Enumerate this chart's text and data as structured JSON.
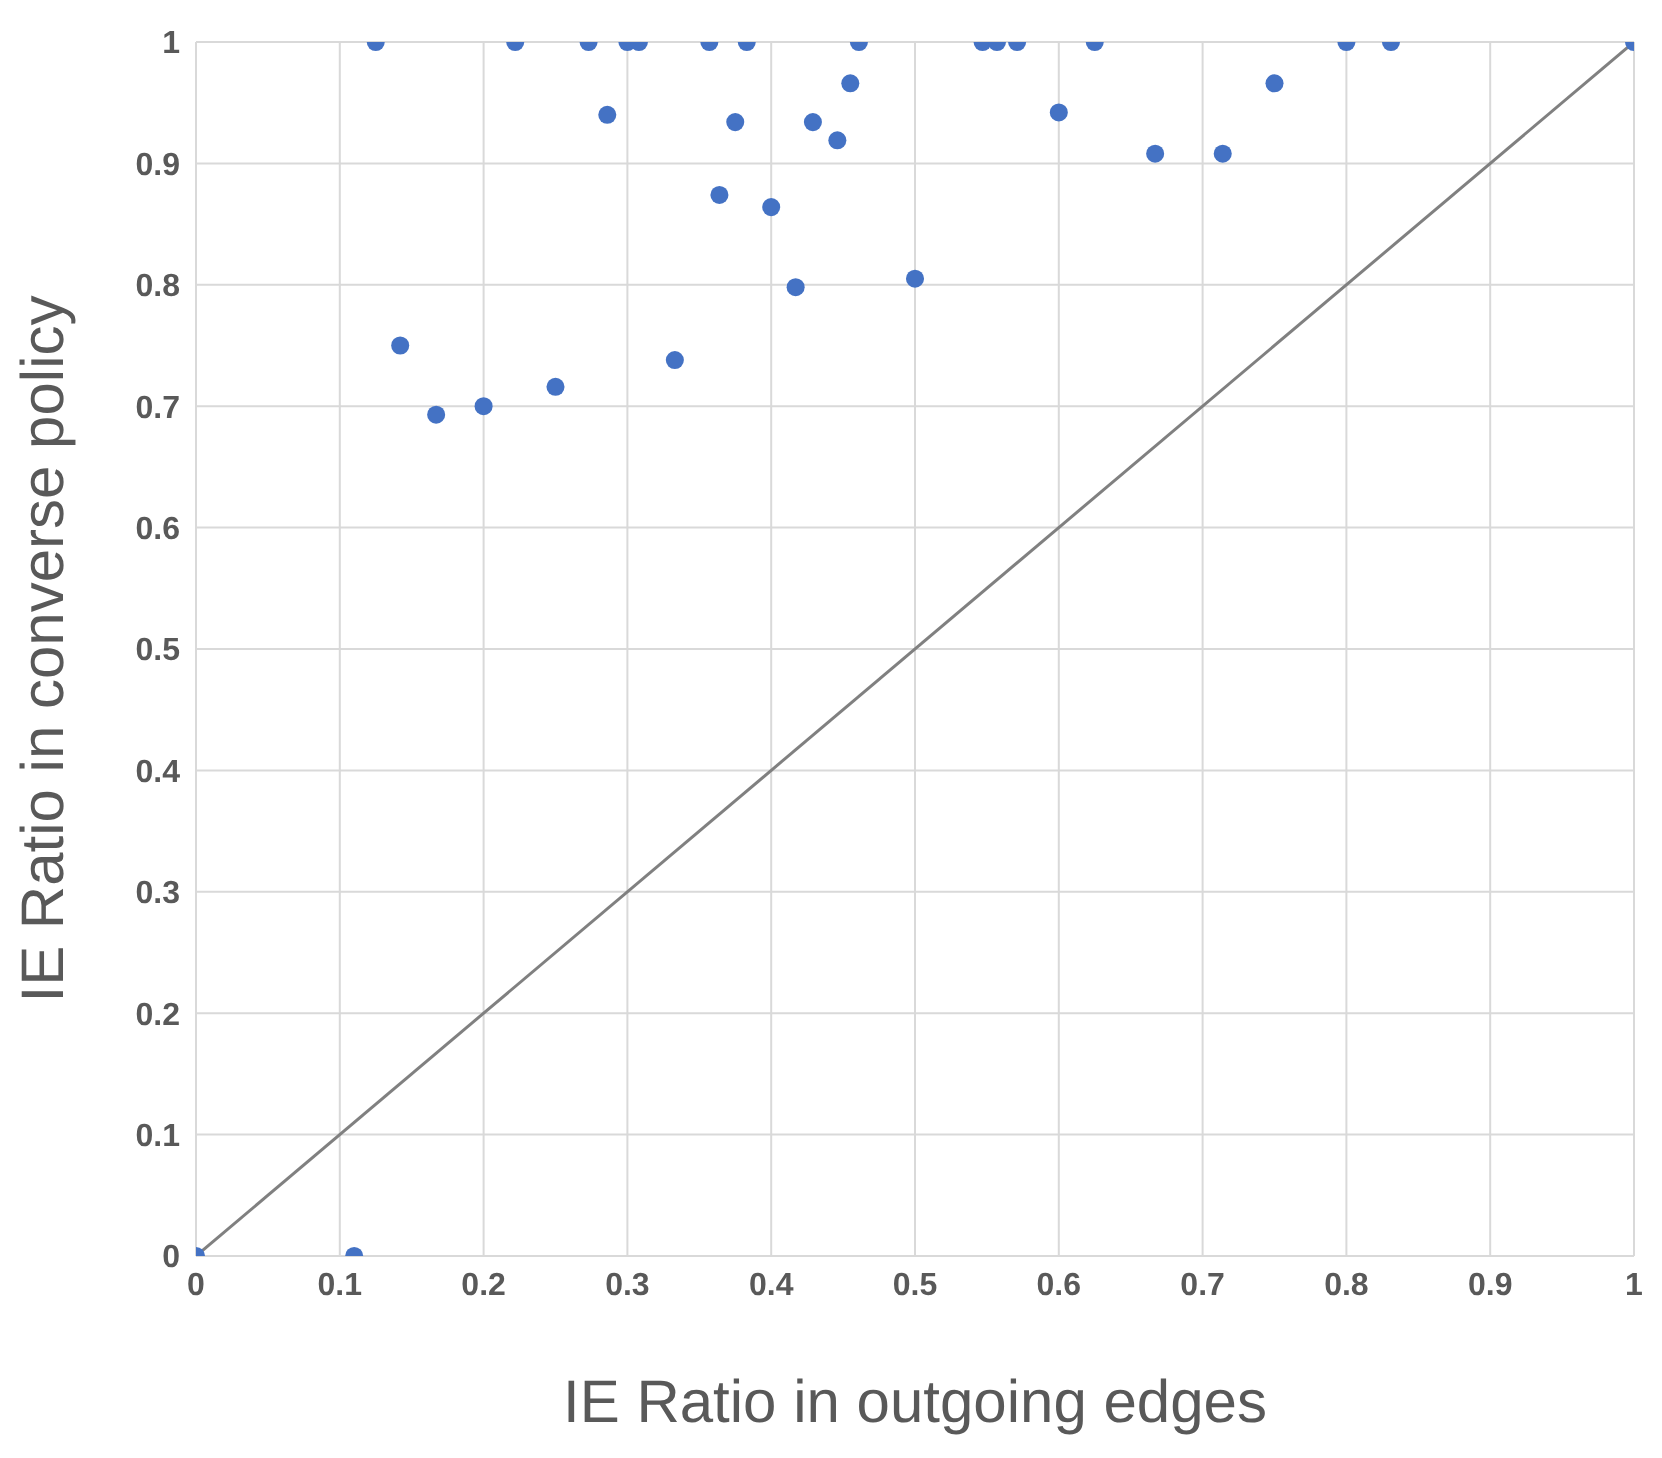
{
  "chart_data": {
    "type": "scatter",
    "xlabel": "IE Ratio in outgoing edges",
    "ylabel": "IE Ratio in converse policy",
    "xlim": [
      0,
      1
    ],
    "ylim": [
      0,
      1
    ],
    "xticks": [
      0,
      0.1,
      0.2,
      0.3,
      0.4,
      0.5,
      0.6,
      0.7,
      0.8,
      0.9,
      1
    ],
    "yticks": [
      0,
      0.1,
      0.2,
      0.3,
      0.4,
      0.5,
      0.6,
      0.7,
      0.8,
      0.9,
      1
    ],
    "grid": true,
    "marker": "circle",
    "series": [
      {
        "color": "#4472c4",
        "x": [
          0,
          0.11,
          0.125,
          0.142,
          0.167,
          0.2,
          0.25,
          0.222,
          0.273,
          0.286,
          0.3,
          0.308,
          0.333,
          0.357,
          0.364,
          0.375,
          0.383,
          0.4,
          0.417,
          0.429,
          0.446,
          0.455,
          0.461,
          0.5,
          0.547,
          0.557,
          0.571,
          0.6,
          0.625,
          0.667,
          0.714,
          0.75,
          0.8,
          0.831,
          1
        ],
        "values": [
          0,
          0,
          1,
          0.75,
          0.693,
          0.7,
          0.716,
          1,
          1,
          0.94,
          1,
          1,
          0.738,
          1,
          0.874,
          0.934,
          1,
          0.864,
          0.798,
          0.934,
          0.919,
          0.966,
          1,
          0.805,
          1,
          1,
          1,
          0.942,
          1,
          0.908,
          0.908,
          0.966,
          1,
          1,
          1
        ]
      },
      {
        "type": "line",
        "marker": "none",
        "color": "#808080",
        "x": [
          0,
          1
        ],
        "values": [
          0,
          1
        ]
      }
    ]
  }
}
